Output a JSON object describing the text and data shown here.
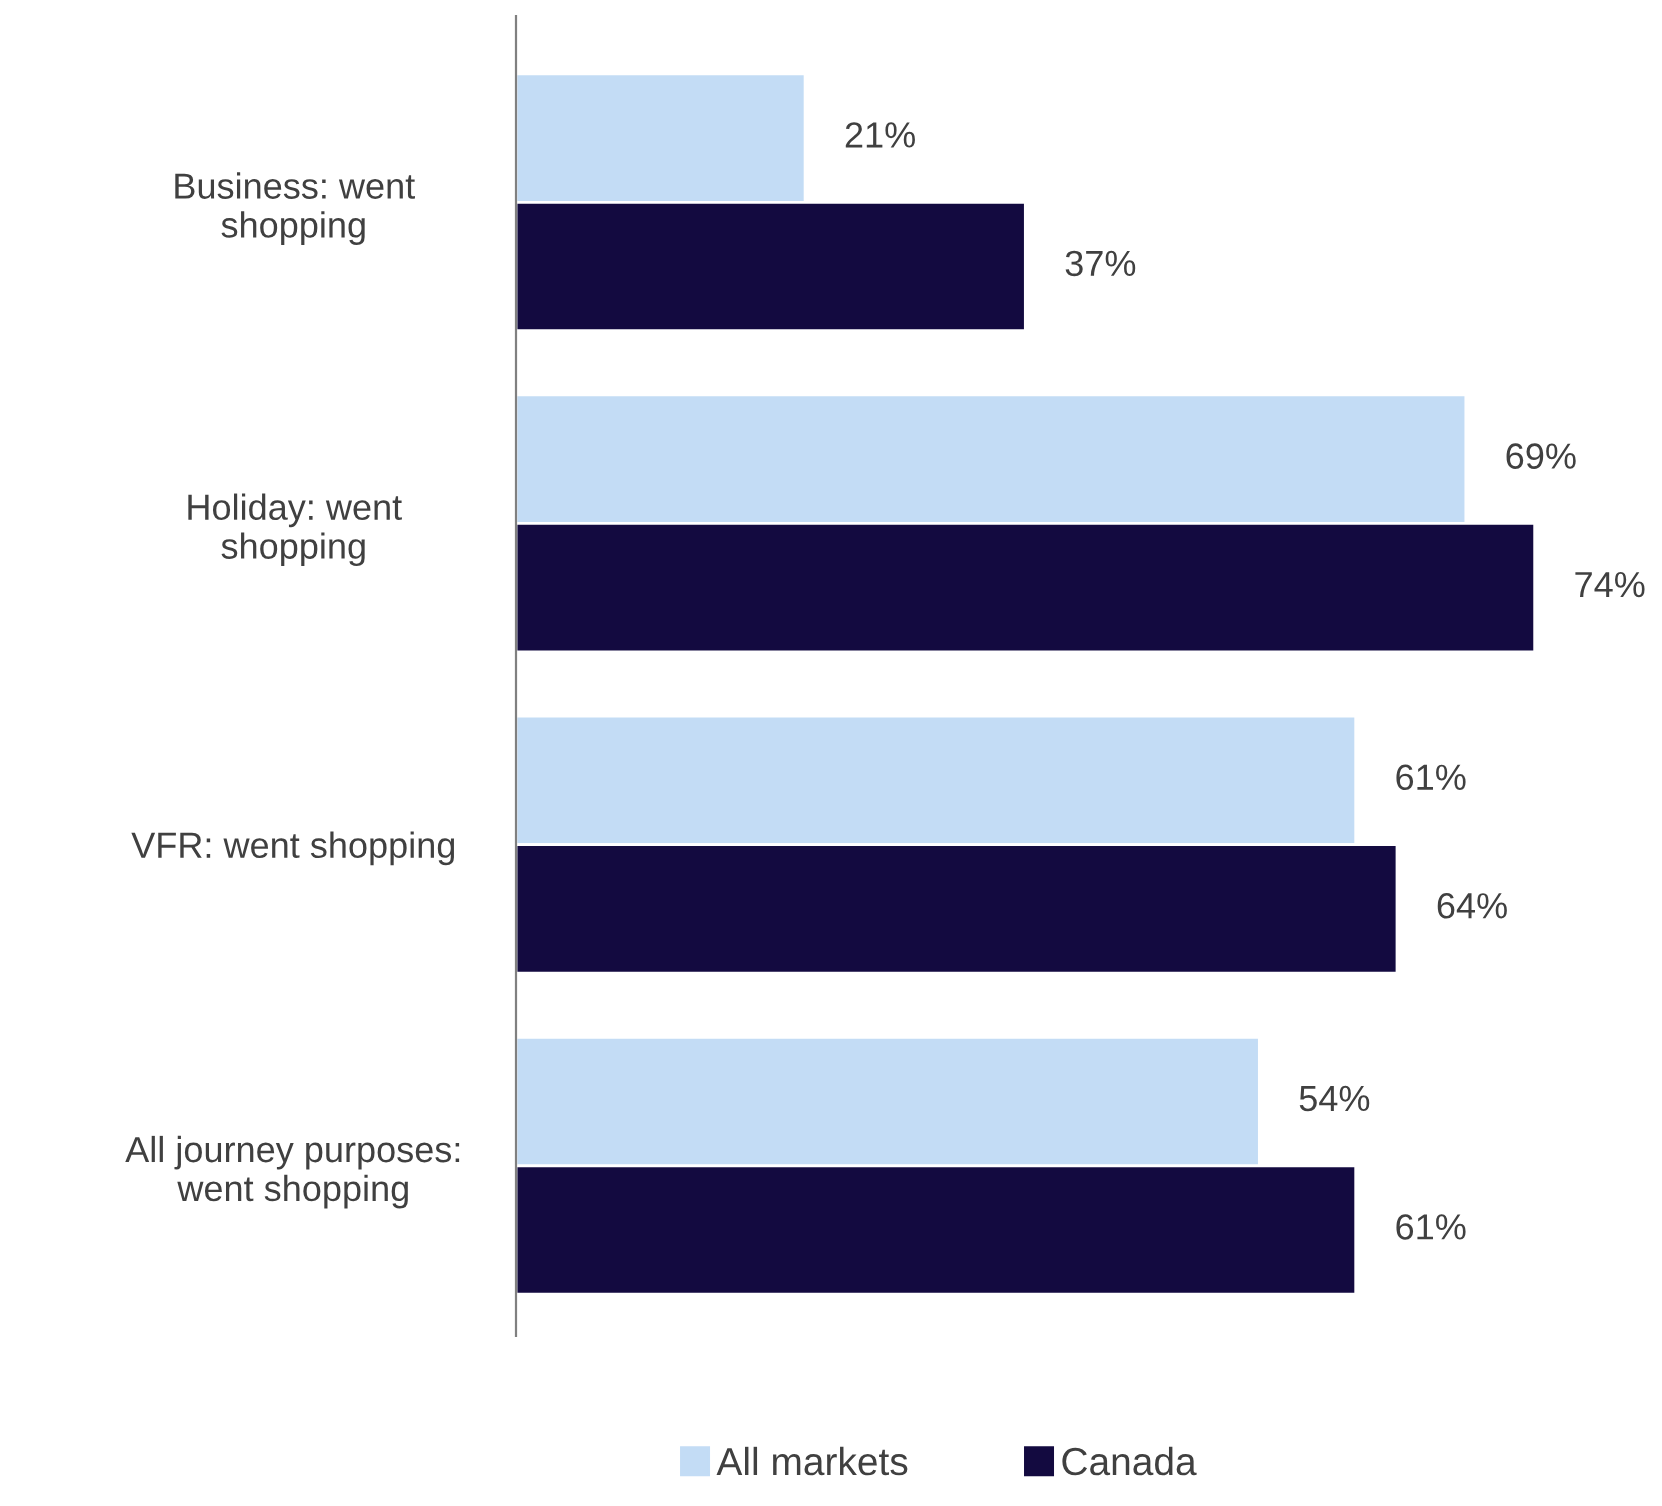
{
  "chart_data": {
    "type": "bar",
    "orientation": "horizontal",
    "categories": [
      "Business: went shopping",
      "Holiday: went shopping",
      "VFR: went shopping",
      "All journey purposes: went shopping"
    ],
    "series": [
      {
        "name": "All markets",
        "color": "#c3dcf5",
        "values": [
          21,
          69,
          61,
          54
        ],
        "value_labels": [
          "21%",
          "69%",
          "61%",
          "54%"
        ]
      },
      {
        "name": "Canada",
        "color": "#130a40",
        "values": [
          37,
          74,
          64,
          61
        ],
        "value_labels": [
          "37%",
          "74%",
          "64%",
          "61%"
        ]
      }
    ],
    "legend": "bottom",
    "grid": false
  }
}
